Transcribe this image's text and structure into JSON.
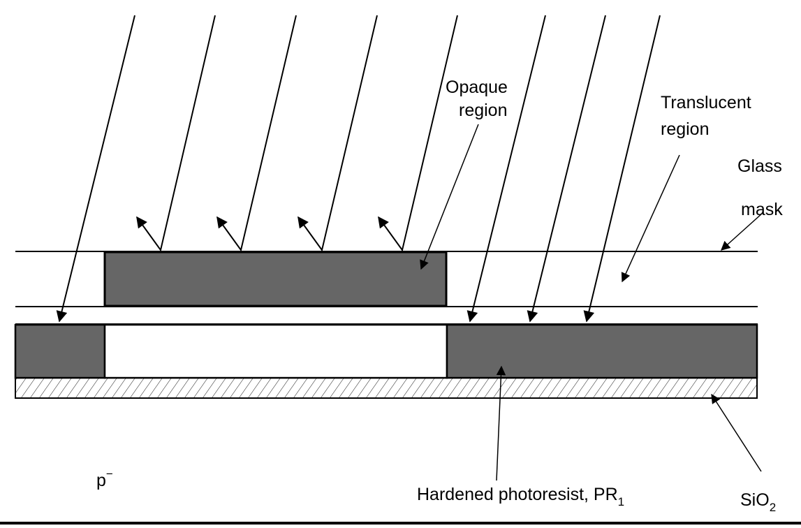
{
  "labels": {
    "opaque_line1": "Opaque",
    "opaque_line2": "region",
    "translucent_line1": "Translucent",
    "translucent_line2": "region",
    "glass_line1": "Glass",
    "glass_line2": "mask",
    "substrate": "p",
    "substrate_sup": "−",
    "photoresist": "Hardened photoresist, PR",
    "photoresist_sub": "1",
    "oxide": "SiO",
    "oxide_sub": "2"
  },
  "colors": {
    "dark_fill": "#666666",
    "stroke": "#000000",
    "background": "#ffffff"
  }
}
